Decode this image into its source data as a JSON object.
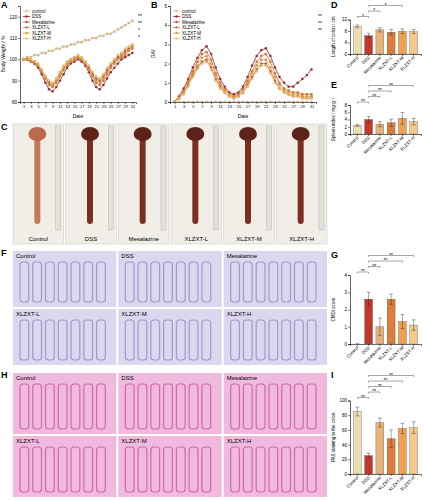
{
  "chart_data": [
    {
      "type": "line",
      "title": "A",
      "x_label": "Date",
      "y_label": "Body Weight / %",
      "x": [
        1,
        2,
        3,
        4,
        5,
        6,
        7,
        8,
        9,
        10,
        11,
        12,
        13,
        14,
        15,
        16,
        17,
        18,
        19,
        20,
        21,
        22,
        23,
        24,
        25,
        26,
        27,
        28,
        29,
        30,
        31
      ],
      "xlim": [
        0,
        32
      ],
      "xticks": [
        1,
        3,
        5,
        7,
        9,
        11,
        13,
        15,
        17,
        19,
        21,
        23,
        25,
        27,
        29,
        31
      ],
      "ylim": [
        80,
        125
      ],
      "yticks": [
        80,
        90,
        100,
        110,
        120
      ],
      "legend": "top-left",
      "series": [
        {
          "name": "control",
          "color": "#e2c48e",
          "marker": "circle",
          "values": [
            100,
            101,
            101,
            102,
            102,
            103,
            103,
            104,
            104,
            105,
            105,
            106,
            106,
            107,
            107,
            108,
            108,
            109,
            109,
            110,
            110,
            111,
            111,
            112,
            112,
            113,
            114,
            115,
            116,
            117,
            118
          ]
        },
        {
          "name": "DSS",
          "color": "#a3262c",
          "marker": "circle",
          "values": [
            100,
            100,
            99,
            98,
            96,
            93,
            89,
            86,
            85,
            87,
            90,
            93,
            96,
            98,
            99,
            100,
            99,
            97,
            94,
            90,
            87,
            86,
            88,
            91,
            94,
            96,
            98,
            100,
            101,
            102,
            103
          ]
        },
        {
          "name": "Mesalazine",
          "color": "#c9583e",
          "marker": "circle",
          "values": [
            100,
            100,
            99,
            99,
            97,
            95,
            92,
            89,
            88,
            90,
            93,
            96,
            98,
            100,
            101,
            101,
            100,
            98,
            96,
            93,
            91,
            90,
            92,
            95,
            97,
            99,
            101,
            102,
            104,
            105,
            106
          ]
        },
        {
          "name": "XLZXT-L",
          "color": "#d9782c",
          "marker": "circle",
          "values": [
            100,
            100,
            99,
            98,
            97,
            94,
            91,
            88,
            87,
            89,
            92,
            95,
            97,
            99,
            100,
            101,
            100,
            98,
            95,
            92,
            89,
            88,
            90,
            93,
            96,
            98,
            100,
            101,
            102,
            104,
            105
          ]
        },
        {
          "name": "XLZXT-M",
          "color": "#e89c3d",
          "marker": "circle",
          "values": [
            100,
            100,
            99,
            99,
            97,
            95,
            91,
            88,
            88,
            90,
            93,
            96,
            98,
            99,
            100,
            101,
            100,
            98,
            95,
            92,
            90,
            89,
            91,
            94,
            96,
            98,
            100,
            102,
            103,
            104,
            106
          ]
        },
        {
          "name": "XLZXT-H",
          "color": "#f2c46b",
          "marker": "circle",
          "values": [
            100,
            101,
            100,
            99,
            98,
            95,
            92,
            90,
            89,
            91,
            94,
            97,
            99,
            100,
            101,
            102,
            101,
            99,
            97,
            94,
            92,
            91,
            93,
            96,
            98,
            100,
            102,
            103,
            105,
            106,
            107
          ]
        }
      ],
      "annotations": [
        {
          "text": "**"
        },
        {
          "text": "**"
        },
        {
          "text": "*"
        },
        {
          "text": "*"
        }
      ]
    },
    {
      "type": "line",
      "title": "B",
      "x_label": "Date",
      "y_label": "DAI",
      "x": [
        1,
        2,
        3,
        4,
        5,
        6,
        7,
        8,
        9,
        10,
        11,
        12,
        13,
        14,
        15,
        16,
        17,
        18,
        19,
        20,
        21,
        22,
        23,
        24,
        25,
        26,
        27,
        28,
        29,
        30,
        31
      ],
      "xlim": [
        0,
        32
      ],
      "xticks": [
        1,
        3,
        5,
        7,
        9,
        11,
        13,
        15,
        17,
        19,
        21,
        23,
        25,
        27,
        29,
        31
      ],
      "ylim": [
        0,
        5
      ],
      "yticks": [
        0,
        1,
        2,
        3,
        4,
        5
      ],
      "legend": "top-left",
      "series": [
        {
          "name": "control",
          "color": "#e2c48e",
          "marker": "circle",
          "values": [
            0,
            0,
            0,
            0,
            0,
            0,
            0,
            0,
            0,
            0,
            0,
            0,
            0,
            0,
            0,
            0,
            0,
            0,
            0,
            0,
            0,
            0,
            0,
            0,
            0,
            0,
            0,
            0,
            0,
            0,
            0
          ]
        },
        {
          "name": "DSS",
          "color": "#a3262c",
          "marker": "circle",
          "values": [
            0,
            0.3,
            0.7,
            1.2,
            1.8,
            2.3,
            2.7,
            2.9,
            2.5,
            1.8,
            1.2,
            0.8,
            0.5,
            0.4,
            0.5,
            0.8,
            1.3,
            1.9,
            2.4,
            2.7,
            2.8,
            2.4,
            1.8,
            1.3,
            1.0,
            0.8,
            0.8,
            1.0,
            1.2,
            1.4,
            1.7
          ]
        },
        {
          "name": "Mesalazine",
          "color": "#c9583e",
          "marker": "circle",
          "values": [
            0,
            0.2,
            0.5,
            0.9,
            1.4,
            1.8,
            2.1,
            2.2,
            1.8,
            1.2,
            0.8,
            0.5,
            0.3,
            0.2,
            0.3,
            0.5,
            0.9,
            1.3,
            1.7,
            2.0,
            2.0,
            1.6,
            1.1,
            0.7,
            0.5,
            0.4,
            0.3,
            0.3,
            0.2,
            0.2,
            0.2
          ]
        },
        {
          "name": "XLZXT-L",
          "color": "#d9782c",
          "marker": "circle",
          "values": [
            0,
            0.3,
            0.6,
            1.1,
            1.6,
            2.1,
            2.5,
            2.6,
            2.2,
            1.5,
            1.0,
            0.7,
            0.4,
            0.3,
            0.4,
            0.7,
            1.1,
            1.6,
            2.1,
            2.4,
            2.5,
            2.1,
            1.5,
            1.0,
            0.7,
            0.6,
            0.5,
            0.5,
            0.4,
            0.4,
            0.4
          ]
        },
        {
          "name": "XLZXT-M",
          "color": "#e89c3d",
          "marker": "circle",
          "values": [
            0,
            0.2,
            0.5,
            1.0,
            1.5,
            1.9,
            2.3,
            2.4,
            2.0,
            1.4,
            0.9,
            0.6,
            0.4,
            0.3,
            0.3,
            0.6,
            1.0,
            1.5,
            1.9,
            2.2,
            2.2,
            1.8,
            1.3,
            0.9,
            0.6,
            0.5,
            0.4,
            0.4,
            0.3,
            0.3,
            0.3
          ]
        },
        {
          "name": "XLZXT-H",
          "color": "#f2c46b",
          "marker": "circle",
          "values": [
            0,
            0.2,
            0.4,
            0.8,
            1.3,
            1.7,
            2.0,
            2.1,
            1.7,
            1.1,
            0.7,
            0.5,
            0.3,
            0.2,
            0.3,
            0.5,
            0.8,
            1.2,
            1.6,
            1.9,
            1.9,
            1.5,
            1.0,
            0.7,
            0.5,
            0.4,
            0.3,
            0.3,
            0.2,
            0.2,
            0.2
          ]
        }
      ],
      "annotations": [
        {
          "text": "**"
        },
        {
          "text": "**"
        },
        {
          "text": "**"
        }
      ]
    },
    {
      "type": "bar",
      "title": "D",
      "y_label": "Length of colon / cm",
      "categories": [
        "Control",
        "DSS",
        "Mesalazine",
        "XLZXT-L",
        "XLZXT-M",
        "XLZXT-H"
      ],
      "values": [
        9.6,
        6.4,
        8.4,
        7.6,
        7.9,
        7.8
      ],
      "errors": [
        0.5,
        0.8,
        0.7,
        0.9,
        0.8,
        0.7
      ],
      "colors": [
        "#efdcb4",
        "#c0392b",
        "#e8b27a",
        "#e07b39",
        "#f0a050",
        "#f6c98a"
      ],
      "ylim": [
        0,
        12
      ],
      "yticks": [
        0,
        4,
        8,
        12
      ],
      "annotations": [
        {
          "text": "*",
          "between": [
            "Control",
            "DSS"
          ]
        },
        {
          "text": "*",
          "between": [
            "DSS",
            "Mesalazine"
          ]
        },
        {
          "text": "*",
          "between": [
            "DSS",
            "XLZXT-M"
          ]
        }
      ]
    },
    {
      "type": "bar",
      "title": "E",
      "y_label": "Spleen index / mg·g⁻¹",
      "categories": [
        "Control",
        "DSS",
        "Mesalazine",
        "XLZXT-L",
        "XLZXT-M",
        "XLZXT-H"
      ],
      "values": [
        2.4,
        4.0,
        2.7,
        3.1,
        4.3,
        3.4
      ],
      "errors": [
        0.3,
        0.8,
        0.7,
        1.0,
        1.6,
        0.9
      ],
      "colors": [
        "#efdcb4",
        "#c0392b",
        "#e8b27a",
        "#e07b39",
        "#f0a050",
        "#f6c98a"
      ],
      "ylim": [
        0,
        8
      ],
      "yticks": [
        0,
        2,
        4,
        6,
        8
      ],
      "annotations": [
        {
          "text": "**",
          "between": [
            "Control",
            "DSS"
          ]
        },
        {
          "text": "**",
          "between": [
            "DSS",
            "Mesalazine"
          ]
        },
        {
          "text": "**",
          "between": [
            "DSS",
            "XLZXT-L"
          ]
        },
        {
          "text": "**",
          "between": [
            "DSS",
            "XLZXT-H"
          ]
        }
      ]
    },
    {
      "type": "bar",
      "title": "G",
      "y_label": "CMDI score",
      "categories": [
        "Control",
        "DSS",
        "Mesalazine",
        "XLZXT-L",
        "XLZXT-M",
        "XLZXT-H"
      ],
      "values": [
        0,
        2.6,
        1.0,
        2.6,
        1.3,
        1.1
      ],
      "errors": [
        0,
        0.4,
        0.5,
        0.3,
        0.4,
        0.3
      ],
      "colors": [
        "#efdcb4",
        "#c0392b",
        "#e8b27a",
        "#e07b39",
        "#f0a050",
        "#f6c98a"
      ],
      "ylim": [
        0,
        4
      ],
      "yticks": [
        0,
        1,
        2,
        3,
        4
      ],
      "annotations": [
        {
          "text": "**",
          "between": [
            "Control",
            "DSS"
          ]
        },
        {
          "text": "**",
          "between": [
            "DSS",
            "Mesalazine"
          ]
        },
        {
          "text": "**",
          "between": [
            "DSS",
            "XLZXT-M"
          ]
        },
        {
          "text": "**",
          "between": [
            "DSS",
            "XLZXT-H"
          ]
        }
      ]
    },
    {
      "type": "bar",
      "title": "I",
      "y_label": "PAS staining in the colon",
      "categories": [
        "Control",
        "DSS",
        "Mesalazine",
        "XLZXT-L",
        "XLZXT-M",
        "XLZXT-H"
      ],
      "values": [
        85,
        25,
        70,
        48,
        62,
        63
      ],
      "errors": [
        6,
        3,
        6,
        12,
        7,
        8
      ],
      "colors": [
        "#efdcb4",
        "#c0392b",
        "#e8b27a",
        "#e07b39",
        "#f0a050",
        "#f6c98a"
      ],
      "ylim": [
        0,
        100
      ],
      "yticks": [
        0,
        20,
        40,
        60,
        80,
        100
      ],
      "annotations": [
        {
          "text": "**",
          "between": [
            "Control",
            "DSS"
          ]
        },
        {
          "text": "**",
          "between": [
            "DSS",
            "Mesalazine"
          ]
        },
        {
          "text": "**",
          "between": [
            "DSS",
            "XLZXT-L"
          ]
        },
        {
          "text": "**",
          "between": [
            "DSS",
            "XLZXT-M"
          ]
        },
        {
          "text": "**",
          "between": [
            "DSS",
            "XLZXT-H"
          ]
        }
      ]
    }
  ],
  "image_panels": [
    {
      "title": "C",
      "labels": [
        "Control",
        "DSS",
        "Mesalazine",
        "XLZXT-L",
        "XLZXT-M",
        "XLZXT-H"
      ]
    },
    {
      "title": "F",
      "labels": [
        "Control",
        "DSS",
        "Mesalazine",
        "XLZXT-L",
        "XLZXT-M",
        "XLZXT-H"
      ]
    },
    {
      "title": "H",
      "labels": [
        "Control",
        "DSS",
        "Mesalazine",
        "XLZXT-L",
        "XLZXT-M",
        "XLZXT-H"
      ]
    }
  ]
}
